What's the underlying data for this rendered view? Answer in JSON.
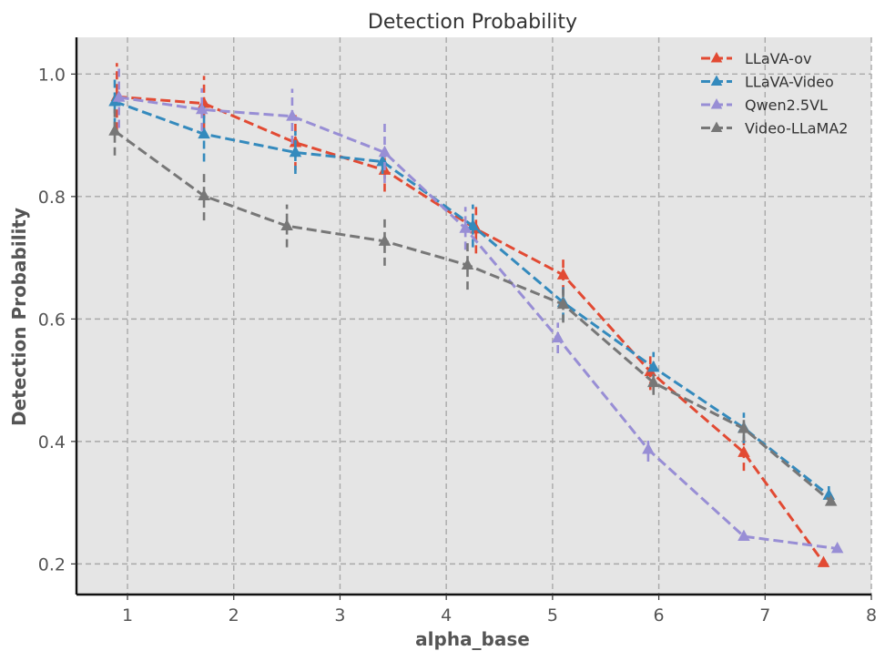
{
  "chart_data": {
    "type": "line",
    "title": "Detection Probability",
    "xlabel": "alpha_base",
    "ylabel": "Detection Probability",
    "xlim": [
      0.52,
      8.0
    ],
    "ylim": [
      0.15,
      1.06
    ],
    "xticks": [
      1,
      2,
      3,
      4,
      5,
      6,
      7,
      8
    ],
    "xtick_labels": [
      "1",
      "2",
      "3",
      "4",
      "5",
      "6",
      "7",
      "8"
    ],
    "yticks": [
      0.2,
      0.4,
      0.6,
      0.8,
      1.0
    ],
    "ytick_labels": [
      "0.2",
      "0.4",
      "0.6",
      "0.8",
      "1.0"
    ],
    "grid": true,
    "legend_position": "top-right",
    "series": [
      {
        "name": "LLaVA-ov",
        "color": "#e24a33",
        "marker": "triangle",
        "linestyle": "dashed",
        "x": [
          0.9,
          1.72,
          2.58,
          3.42,
          4.28,
          5.1,
          5.92,
          6.8,
          7.55
        ],
        "y": [
          0.963,
          0.952,
          0.888,
          0.843,
          0.747,
          0.672,
          0.514,
          0.382,
          0.202
        ],
        "err": [
          0.055,
          0.045,
          0.045,
          0.035,
          0.04,
          0.03,
          0.03,
          0.03,
          0.0
        ]
      },
      {
        "name": "LLaVA-Video",
        "color": "#348abd",
        "marker": "triangle",
        "linestyle": "dashed",
        "x": [
          0.88,
          1.72,
          2.58,
          3.4,
          4.25,
          5.1,
          5.95,
          6.8,
          7.6
        ],
        "y": [
          0.955,
          0.902,
          0.872,
          0.857,
          0.752,
          0.627,
          0.521,
          0.422,
          0.312
        ],
        "err": [
          0.04,
          0.045,
          0.035,
          0.02,
          0.035,
          0.03,
          0.025,
          0.025,
          0.015
        ]
      },
      {
        "name": "Qwen2.5VL",
        "color": "#988ed5",
        "marker": "triangle",
        "linestyle": "dashed",
        "x": [
          0.92,
          1.7,
          2.55,
          3.42,
          4.18,
          5.05,
          5.9,
          6.8,
          7.68
        ],
        "y": [
          0.962,
          0.942,
          0.931,
          0.872,
          0.748,
          0.569,
          0.387,
          0.245,
          0.225
        ],
        "err": [
          0.05,
          0.035,
          0.045,
          0.05,
          0.035,
          0.025,
          0.02,
          0.0,
          0.0
        ]
      },
      {
        "name": "Video-LLaMA2",
        "color": "#777777",
        "marker": "triangle",
        "linestyle": "dashed",
        "x": [
          0.88,
          1.72,
          2.5,
          3.42,
          4.2,
          5.1,
          5.95,
          6.8,
          7.62
        ],
        "y": [
          0.907,
          0.801,
          0.752,
          0.727,
          0.688,
          0.624,
          0.496,
          0.421,
          0.302
        ],
        "err": [
          0.04,
          0.04,
          0.035,
          0.04,
          0.04,
          0.03,
          0.02,
          0.02,
          0.0
        ]
      }
    ]
  }
}
